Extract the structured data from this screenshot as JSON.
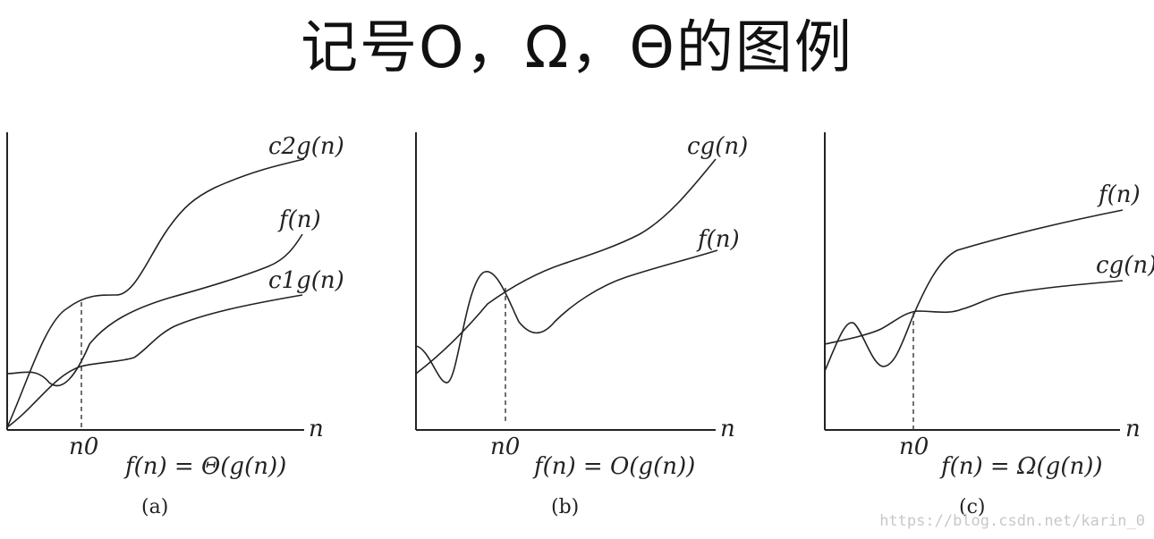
{
  "title": "记号O，Ω，Θ的图例",
  "panels": [
    {
      "sublabel": "(a)",
      "formula": "f(n) = Θ(g(n))",
      "x_axis_label": "n",
      "threshold_label": "n0",
      "curve_labels": [
        "c2g(n)",
        "f(n)",
        "c1g(n)"
      ]
    },
    {
      "sublabel": "(b)",
      "formula": "f(n) = O(g(n))",
      "x_axis_label": "n",
      "threshold_label": "n0",
      "curve_labels": [
        "cg(n)",
        "f(n)"
      ]
    },
    {
      "sublabel": "(c)",
      "formula": "f(n) = Ω(g(n))",
      "x_axis_label": "n",
      "threshold_label": "n0",
      "curve_labels": [
        "f(n)",
        "cg(n)"
      ]
    }
  ],
  "watermark": "https://blog.csdn.net/karin_0"
}
